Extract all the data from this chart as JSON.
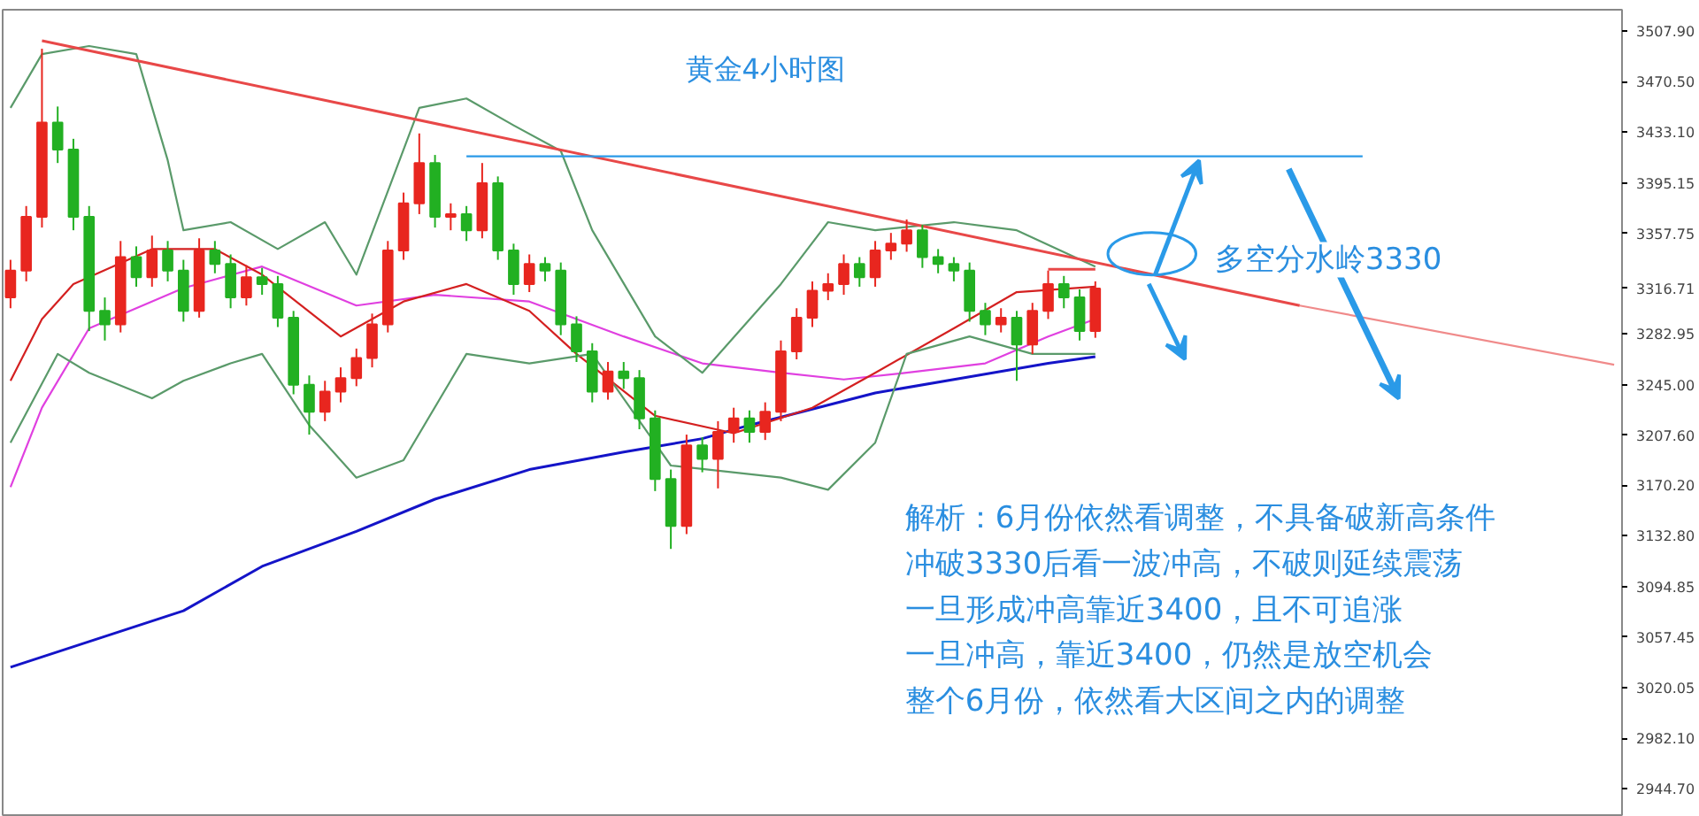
{
  "chart_data": {
    "type": "candlestick",
    "title": "黄金4小时图",
    "categories": [
      null,
      null,
      null,
      null,
      null,
      null,
      null,
      null,
      null,
      null,
      null,
      null,
      null,
      null,
      null,
      null,
      null,
      null,
      null,
      null,
      null,
      null,
      null,
      null,
      null,
      null,
      null,
      null,
      null,
      null,
      null,
      null,
      null,
      null,
      null,
      null,
      null,
      null,
      null,
      null,
      null,
      null,
      null,
      null,
      null,
      null,
      null,
      null,
      null,
      null,
      null,
      null,
      null,
      null,
      null,
      null,
      null,
      null,
      null,
      null,
      null,
      null,
      null,
      null,
      null,
      null,
      null,
      null,
      null,
      null,
      null,
      null,
      null,
      null,
      null,
      null,
      null,
      null,
      null,
      null,
      null,
      null,
      null,
      null,
      null,
      null,
      null,
      null,
      null,
      null,
      null,
      null,
      null,
      null,
      null,
      null,
      null,
      null,
      null,
      null,
      null,
      null,
      null
    ],
    "ohlc": [
      [
        3310,
        3338,
        3302,
        3330
      ],
      [
        3330,
        3378,
        3322,
        3370
      ],
      [
        3370,
        3495,
        3362,
        3440
      ],
      [
        3440,
        3452,
        3410,
        3420
      ],
      [
        3420,
        3428,
        3360,
        3370
      ],
      [
        3370,
        3378,
        3285,
        3300
      ],
      [
        3300,
        3310,
        3278,
        3290
      ],
      [
        3290,
        3352,
        3284,
        3340
      ],
      [
        3340,
        3348,
        3318,
        3325
      ],
      [
        3325,
        3356,
        3318,
        3345
      ],
      [
        3345,
        3352,
        3322,
        3330
      ],
      [
        3330,
        3338,
        3292,
        3300
      ],
      [
        3300,
        3354,
        3295,
        3345
      ],
      [
        3345,
        3352,
        3328,
        3335
      ],
      [
        3335,
        3342,
        3302,
        3310
      ],
      [
        3310,
        3334,
        3304,
        3325
      ],
      [
        3325,
        3332,
        3312,
        3320
      ],
      [
        3320,
        3326,
        3288,
        3295
      ],
      [
        3295,
        3300,
        3238,
        3245
      ],
      [
        3245,
        3252,
        3208,
        3225
      ],
      [
        3225,
        3248,
        3218,
        3240
      ],
      [
        3240,
        3258,
        3232,
        3250
      ],
      [
        3250,
        3272,
        3244,
        3265
      ],
      [
        3265,
        3298,
        3258,
        3290
      ],
      [
        3290,
        3352,
        3284,
        3345
      ],
      [
        3345,
        3388,
        3338,
        3380
      ],
      [
        3380,
        3432,
        3372,
        3410
      ],
      [
        3410,
        3416,
        3362,
        3370
      ],
      [
        3370,
        3380,
        3360,
        3372
      ],
      [
        3372,
        3378,
        3352,
        3360
      ],
      [
        3360,
        3410,
        3354,
        3395
      ],
      [
        3395,
        3400,
        3338,
        3345
      ],
      [
        3345,
        3350,
        3312,
        3320
      ],
      [
        3320,
        3342,
        3314,
        3335
      ],
      [
        3335,
        3340,
        3322,
        3330
      ],
      [
        3330,
        3336,
        3282,
        3290
      ],
      [
        3290,
        3296,
        3262,
        3270
      ],
      [
        3270,
        3276,
        3232,
        3240
      ],
      [
        3240,
        3262,
        3234,
        3255
      ],
      [
        3255,
        3262,
        3242,
        3250
      ],
      [
        3250,
        3256,
        3212,
        3220
      ],
      [
        3220,
        3226,
        3166,
        3175
      ],
      [
        3175,
        3182,
        3123,
        3140
      ],
      [
        3140,
        3208,
        3134,
        3200
      ],
      [
        3200,
        3206,
        3180,
        3190
      ],
      [
        3190,
        3218,
        3168,
        3210
      ],
      [
        3210,
        3228,
        3202,
        3220
      ],
      [
        3220,
        3226,
        3202,
        3210
      ],
      [
        3210,
        3232,
        3204,
        3225
      ],
      [
        3225,
        3278,
        3218,
        3270
      ],
      [
        3270,
        3302,
        3264,
        3295
      ],
      [
        3295,
        3322,
        3288,
        3315
      ],
      [
        3315,
        3328,
        3308,
        3320
      ],
      [
        3320,
        3342,
        3312,
        3335
      ],
      [
        3335,
        3340,
        3318,
        3325
      ],
      [
        3325,
        3352,
        3318,
        3345
      ],
      [
        3345,
        3358,
        3338,
        3350
      ],
      [
        3350,
        3368,
        3344,
        3360
      ],
      [
        3360,
        3364,
        3332,
        3340
      ],
      [
        3340,
        3346,
        3328,
        3335
      ],
      [
        3335,
        3340,
        3322,
        3330
      ],
      [
        3330,
        3336,
        3292,
        3300
      ],
      [
        3300,
        3306,
        3282,
        3290
      ],
      [
        3290,
        3302,
        3284,
        3295
      ],
      [
        3295,
        3300,
        3248,
        3275
      ],
      [
        3275,
        3306,
        3268,
        3300
      ],
      [
        3300,
        3330,
        3294,
        3320
      ],
      [
        3320,
        3326,
        3302,
        3310
      ],
      [
        3310,
        3316,
        3278,
        3285
      ],
      [
        3285,
        3322,
        3280,
        3316.71
      ],
      null,
      null,
      null,
      null,
      null,
      null,
      null,
      null,
      null,
      null,
      null,
      null,
      null,
      null,
      null,
      null,
      null,
      null,
      null,
      null,
      null,
      null,
      null,
      null,
      null,
      null,
      null,
      null,
      null,
      null,
      null,
      null,
      null
    ],
    "colors": [
      "#e8261f",
      "#e8261f",
      "#e8261f",
      "#22b022",
      "#22b022",
      "#22b022",
      "#22b022",
      "#e8261f",
      "#22b022",
      "#e8261f",
      "#22b022",
      "#22b022",
      "#e8261f",
      "#22b022",
      "#22b022",
      "#e8261f",
      "#22b022",
      "#22b022",
      "#22b022",
      "#22b022",
      "#e8261f",
      "#e8261f",
      "#e8261f",
      "#e8261f",
      "#e8261f",
      "#e8261f",
      "#e8261f",
      "#22b022",
      "#e8261f",
      "#22b022",
      "#e8261f",
      "#22b022",
      "#22b022",
      "#e8261f",
      "#22b022",
      "#22b022",
      "#22b022",
      "#22b022",
      "#e8261f",
      "#22b022",
      "#22b022",
      "#22b022",
      "#22b022",
      "#e8261f",
      "#22b022",
      "#e8261f",
      "#e8261f",
      "#22b022",
      "#e8261f",
      "#e8261f",
      "#e8261f",
      "#e8261f",
      "#e8261f",
      "#e8261f",
      "#22b022",
      "#e8261f",
      "#e8261f",
      "#e8261f",
      "#22b022",
      "#22b022",
      "#22b022",
      "#22b022",
      "#22b022",
      "#e8261f",
      "#22b022",
      "#e8261f",
      "#e8261f",
      "#22b022",
      "#22b022",
      "#e8261f",
      null,
      null,
      null,
      null,
      null,
      null,
      null,
      null,
      null,
      null,
      null,
      null,
      null,
      null,
      null,
      null,
      null,
      null,
      null,
      null,
      null,
      null,
      null,
      null,
      null,
      null,
      null,
      null,
      null,
      null,
      null,
      null,
      null
    ],
    "series": [
      {
        "type": "line",
        "color": "#1414c8",
        "values": [
          3035,
          null,
          null,
          null,
          null,
          null,
          null,
          null,
          null,
          null,
          null,
          3077,
          null,
          null,
          null,
          null,
          3110,
          null,
          null,
          null,
          null,
          null,
          3136,
          null,
          null,
          null,
          null,
          3160,
          null,
          null,
          null,
          null,
          null,
          3182,
          null,
          null,
          null,
          null,
          null,
          3195,
          null,
          null,
          null,
          null,
          3205,
          null,
          null,
          3215,
          null,
          null,
          null,
          null,
          null,
          null,
          null,
          3239,
          null,
          null,
          null,
          null,
          null,
          3251,
          null,
          null,
          null,
          null,
          3261,
          null,
          null,
          3266,
          null,
          null,
          null,
          null,
          null,
          null,
          null,
          null,
          null,
          null,
          null,
          null,
          null,
          null,
          null,
          null,
          null,
          null,
          null,
          null,
          null,
          null,
          null,
          null,
          null,
          null,
          null,
          null,
          null,
          null,
          null,
          null,
          null
        ]
      },
      {
        "type": "line",
        "color": "#e040e0",
        "values": [
          3169,
          null,
          3228,
          null,
          null,
          3287,
          null,
          null,
          null,
          null,
          null,
          3317,
          null,
          null,
          null,
          null,
          3333,
          null,
          null,
          null,
          null,
          null,
          3304,
          null,
          null,
          null,
          null,
          3312,
          null,
          null,
          null,
          null,
          null,
          3307,
          null,
          null,
          null,
          null,
          null,
          3281,
          null,
          null,
          null,
          null,
          3261,
          null,
          null,
          null,
          null,
          3254,
          null,
          null,
          null,
          3249,
          null,
          null,
          null,
          3254,
          null,
          null,
          null,
          null,
          3261,
          null,
          null,
          null,
          3281,
          null,
          null,
          3294,
          null,
          null,
          null,
          null,
          null,
          null,
          null,
          null,
          null,
          null,
          null,
          null,
          null,
          null,
          null,
          null,
          null,
          null,
          null,
          null,
          null,
          null,
          null,
          null,
          null,
          null,
          null,
          null,
          null,
          null,
          null,
          null,
          null
        ]
      },
      {
        "type": "line",
        "color": "#d42020",
        "values": [
          3248,
          null,
          3294,
          null,
          3320,
          null,
          null,
          null,
          null,
          3346,
          null,
          null,
          null,
          3346,
          null,
          null,
          3327,
          null,
          null,
          null,
          null,
          3281,
          null,
          null,
          null,
          3307,
          null,
          null,
          null,
          3320,
          null,
          null,
          null,
          3300,
          null,
          null,
          3268,
          null,
          null,
          null,
          null,
          3222,
          null,
          null,
          null,
          null,
          3209,
          null,
          null,
          null,
          null,
          3228,
          null,
          null,
          null,
          3254,
          null,
          null,
          null,
          null,
          3287,
          null,
          null,
          null,
          3314,
          null,
          null,
          null,
          null,
          3318,
          null,
          null,
          null,
          null,
          null,
          null,
          null,
          null,
          null,
          null,
          null,
          null,
          null,
          null,
          null,
          null,
          null,
          null,
          null,
          null,
          null,
          null,
          null,
          null,
          null,
          null,
          null,
          null,
          null,
          null,
          null,
          null,
          null
        ]
      },
      {
        "type": "line",
        "color": "#5a9a6a",
        "values": [
          3451,
          null,
          3491,
          null,
          null,
          3497,
          null,
          null,
          3491,
          null,
          3412,
          3360,
          null,
          null,
          3366,
          null,
          null,
          3346,
          null,
          null,
          3366,
          null,
          3327,
          null,
          null,
          null,
          3451,
          null,
          null,
          3458,
          null,
          null,
          3438,
          null,
          null,
          3419,
          null,
          3360,
          null,
          null,
          null,
          3281,
          null,
          null,
          3254,
          null,
          null,
          null,
          null,
          3320,
          null,
          null,
          3366,
          null,
          null,
          3360,
          null,
          null,
          null,
          null,
          3366,
          null,
          null,
          null,
          3360,
          null,
          null,
          null,
          null,
          3333,
          null,
          null,
          null,
          null,
          null,
          null,
          null,
          null,
          null,
          null,
          null,
          null,
          null,
          null,
          null,
          null,
          null,
          null,
          null,
          null,
          null,
          null,
          null,
          null,
          null,
          null,
          null,
          null,
          null,
          null,
          null,
          null,
          null
        ]
      },
      {
        "type": "line",
        "color": "#5a9a6a",
        "values": [
          3202,
          null,
          null,
          3268,
          null,
          3254,
          null,
          null,
          null,
          3235,
          null,
          3248,
          null,
          null,
          3261,
          null,
          3268,
          null,
          null,
          3215,
          null,
          null,
          3176,
          null,
          null,
          3189,
          null,
          null,
          null,
          3268,
          null,
          null,
          null,
          3261,
          null,
          null,
          null,
          3268,
          null,
          null,
          null,
          null,
          3185,
          null,
          null,
          null,
          null,
          null,
          null,
          3176,
          null,
          null,
          3167,
          null,
          null,
          3202,
          null,
          3268,
          null,
          null,
          null,
          3281,
          null,
          null,
          null,
          3268,
          null,
          null,
          null,
          3268,
          null,
          null,
          null,
          null,
          null,
          null,
          null,
          null,
          null,
          null,
          null,
          null,
          null,
          null,
          null,
          null,
          null,
          null,
          null,
          null,
          null,
          null,
          null,
          null,
          null,
          null,
          null,
          null,
          null,
          null,
          null,
          null,
          null
        ]
      },
      {
        "type": "line",
        "color": "#e84848",
        "values": [
          null,
          null,
          3501,
          null,
          null,
          null,
          null,
          null,
          null,
          null,
          null,
          null,
          null,
          null,
          null,
          null,
          null,
          null,
          null,
          null,
          null,
          null,
          null,
          null,
          null,
          null,
          null,
          null,
          null,
          null,
          null,
          null,
          null,
          null,
          null,
          null,
          null,
          null,
          null,
          null,
          null,
          null,
          null,
          null,
          null,
          null,
          null,
          null,
          null,
          null,
          null,
          null,
          null,
          null,
          null,
          null,
          null,
          null,
          null,
          null,
          null,
          null,
          null,
          null,
          null,
          null,
          null,
          null,
          null,
          null,
          null,
          null,
          null,
          null,
          null,
          null,
          null,
          null,
          null,
          null,
          null,
          null,
          3304,
          null,
          null,
          null,
          null,
          null,
          null,
          null,
          null,
          null,
          null,
          null,
          null,
          null,
          null,
          null,
          null,
          null,
          null,
          null,
          null
        ]
      },
      {
        "type": "line",
        "color": "#f08a8a",
        "values": [
          null,
          null,
          null,
          null,
          null,
          null,
          null,
          null,
          null,
          null,
          null,
          null,
          null,
          null,
          null,
          null,
          null,
          null,
          null,
          null,
          null,
          null,
          null,
          null,
          null,
          null,
          null,
          null,
          null,
          null,
          null,
          null,
          null,
          null,
          null,
          null,
          null,
          null,
          null,
          null,
          null,
          null,
          null,
          null,
          null,
          null,
          null,
          null,
          null,
          null,
          null,
          null,
          null,
          null,
          null,
          null,
          null,
          null,
          null,
          null,
          null,
          null,
          null,
          null,
          null,
          null,
          null,
          null,
          null,
          null,
          null,
          null,
          null,
          null,
          null,
          null,
          null,
          null,
          null,
          null,
          null,
          null,
          3304,
          null,
          null,
          null,
          null,
          null,
          null,
          null,
          null,
          null,
          null,
          null,
          null,
          null,
          null,
          null,
          null,
          null,
          null,
          null,
          3260
        ]
      },
      {
        "type": "line",
        "color": "#2a9ae8",
        "values": [
          null,
          null,
          null,
          null,
          null,
          null,
          null,
          null,
          null,
          null,
          null,
          null,
          null,
          null,
          null,
          null,
          null,
          null,
          null,
          null,
          null,
          null,
          null,
          null,
          null,
          null,
          null,
          null,
          null,
          3415,
          null,
          null,
          null,
          null,
          null,
          null,
          null,
          null,
          null,
          null,
          null,
          null,
          null,
          null,
          null,
          null,
          null,
          null,
          null,
          null,
          null,
          null,
          null,
          null,
          null,
          null,
          null,
          null,
          null,
          null,
          null,
          null,
          null,
          null,
          null,
          null,
          null,
          null,
          null,
          null,
          null,
          null,
          null,
          null,
          null,
          null,
          null,
          null,
          null,
          null,
          null,
          null,
          null,
          null,
          null,
          null,
          3415,
          null,
          null,
          null,
          null,
          null,
          null,
          null,
          null,
          null,
          null,
          null,
          null,
          null,
          null,
          null,
          null
        ]
      },
      {
        "type": "line",
        "color": "#e84848",
        "values": [
          null,
          null,
          null,
          null,
          null,
          null,
          null,
          null,
          null,
          null,
          null,
          null,
          null,
          null,
          null,
          null,
          null,
          null,
          null,
          null,
          null,
          null,
          null,
          null,
          null,
          null,
          null,
          null,
          null,
          null,
          null,
          null,
          null,
          null,
          null,
          null,
          null,
          null,
          null,
          null,
          null,
          null,
          null,
          null,
          null,
          null,
          null,
          null,
          null,
          null,
          null,
          null,
          null,
          null,
          null,
          null,
          null,
          null,
          null,
          null,
          null,
          null,
          null,
          null,
          null,
          null,
          3331,
          null,
          null,
          3331,
          null,
          null,
          null,
          null,
          null,
          null,
          null,
          null,
          null,
          null,
          null,
          null,
          null,
          null,
          null,
          null,
          null,
          null,
          null,
          null,
          null,
          null,
          null,
          null,
          null,
          null,
          null,
          null,
          null,
          null,
          null,
          null,
          null
        ]
      }
    ],
    "ylim": [
      2925,
      3524
    ],
    "yticks": [
      {
        "value": 3507.9,
        "label": "3507.90"
      },
      {
        "value": 3470.5,
        "label": "3470.50"
      },
      {
        "value": 3433.1,
        "label": "3433.10"
      },
      {
        "value": 3395.15,
        "label": "3395.15"
      },
      {
        "value": 3357.75,
        "label": "3357.75"
      },
      {
        "value": 3316.71,
        "label": "3316.71"
      },
      {
        "value": 3282.95,
        "label": "3282.95"
      },
      {
        "value": 3245,
        "label": "3245.00"
      },
      {
        "value": 3207.6,
        "label": "3207.60"
      },
      {
        "value": 3170.2,
        "label": "3170.20"
      },
      {
        "value": 3132.8,
        "label": "3132.80"
      },
      {
        "value": 3094.85,
        "label": "3094.85"
      },
      {
        "value": 3057.45,
        "label": "3057.45"
      },
      {
        "value": 3020.05,
        "label": "3020.05"
      },
      {
        "value": 2982.1,
        "label": "2982.10"
      },
      {
        "value": 2944.7,
        "label": "2944.70"
      }
    ],
    "tick_labels": "y",
    "grid": false,
    "annotations": [
      "多空分水岭3330",
      "解析：6月份依然看调整，不具备破新高条件",
      "冲破3330后看一波冲高，不破则延续震荡",
      "一旦形成冲高靠近3400，且不可追涨",
      "一旦冲高，靠近3400，仍然是放空机会",
      "整个6月份，依然看大区间之内的调整"
    ]
  }
}
